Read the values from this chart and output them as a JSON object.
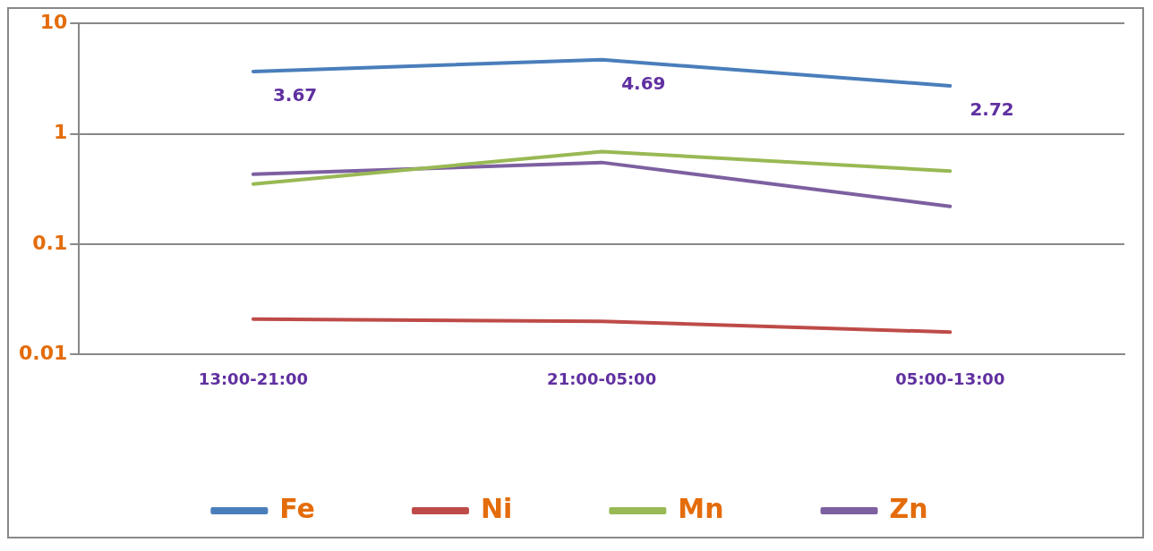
{
  "chart_data": {
    "type": "line",
    "log": true,
    "categories": [
      "13:00-21:00",
      "21:00-05:00",
      "05:00-13:00"
    ],
    "series": [
      {
        "name": "Fe",
        "color": "#4a7ebb",
        "values": [
          3.67,
          4.69,
          2.72
        ],
        "value_labels": [
          "3.67",
          "4.69",
          "2.72"
        ]
      },
      {
        "name": "Ni",
        "color": "#be4b48",
        "values": [
          0.021,
          0.02,
          0.016
        ]
      },
      {
        "name": "Mn",
        "color": "#98b954",
        "values": [
          0.35,
          0.69,
          0.46
        ]
      },
      {
        "name": "Zn",
        "color": "#7d60a0",
        "values": [
          0.43,
          0.55,
          0.22
        ]
      }
    ],
    "ylim": [
      0.01,
      10
    ],
    "yticks": [
      0.01,
      0.1,
      1,
      10
    ],
    "grid": "y",
    "legend": "bottom",
    "marker": "none",
    "line_style": "solid"
  }
}
